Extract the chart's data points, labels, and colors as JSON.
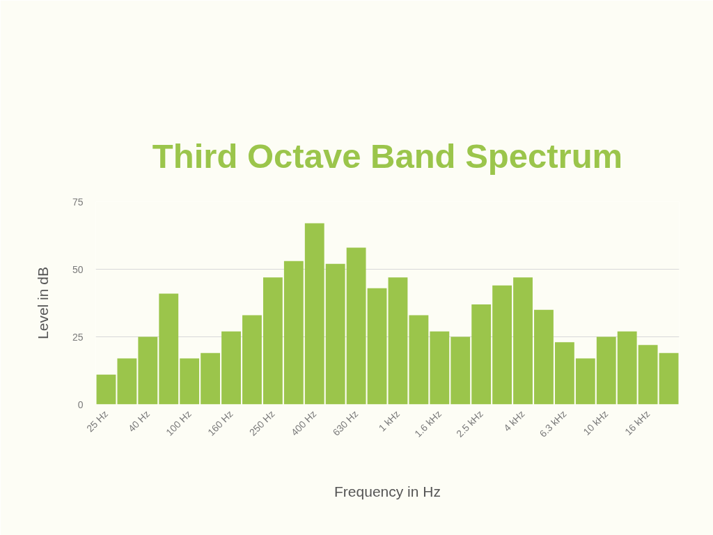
{
  "chart_data": {
    "type": "bar",
    "title": "Third Octave Band Spectrum",
    "xlabel": "Frequency in Hz",
    "ylabel": "Level in dB",
    "categories": [
      "25 Hz",
      null,
      "40 Hz",
      null,
      "100 Hz",
      null,
      "160 Hz",
      null,
      "250 Hz",
      null,
      "400 Hz",
      null,
      "630 Hz",
      null,
      "1 kHz",
      null,
      "1.6 kHz",
      null,
      "2.5 kHz",
      null,
      "4 kHz",
      null,
      "6.3 kHz",
      null,
      "10 kHz",
      null,
      "16 kHz",
      null
    ],
    "values": [
      11,
      17,
      25,
      41,
      17,
      19,
      27,
      33,
      47,
      53,
      67,
      52,
      58,
      43,
      47,
      33,
      27,
      25,
      37,
      44,
      47,
      35,
      23,
      17,
      25,
      27,
      22,
      19
    ],
    "color": "#9bc54b",
    "ylim": [
      0,
      75
    ],
    "yticks": [
      0,
      25,
      50,
      75
    ],
    "grid": "y"
  }
}
